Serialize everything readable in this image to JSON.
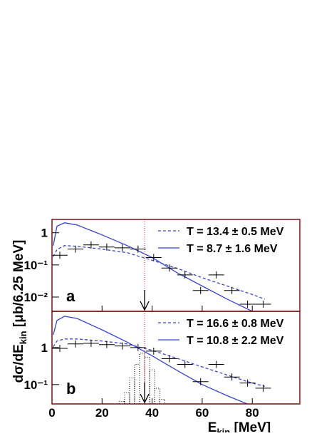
{
  "chart_data": [
    {
      "type": "line",
      "panel_label": "a",
      "xlim": [
        0,
        99
      ],
      "xticks": [
        0,
        20,
        40,
        60,
        80
      ],
      "ylim": [
        0.0036,
        2.6
      ],
      "log_y": true,
      "yticks": [
        {
          "value": 1,
          "label": "1"
        },
        {
          "value": 0.1,
          "label": "10⁻¹"
        },
        {
          "value": 0.01,
          "label": "10⁻²"
        }
      ],
      "marker_x": 37,
      "series": [
        {
          "name": "T = 13.4 ± 0.5 MeV",
          "color": "#3344dd",
          "dashed": true,
          "x": [
            0.5,
            2,
            5,
            10,
            20,
            30,
            40,
            50,
            60,
            70,
            80,
            85
          ],
          "values": [
            0.18,
            0.3,
            0.4,
            0.38,
            0.31,
            0.24,
            0.14,
            0.078,
            0.04,
            0.022,
            0.012,
            0.0086
          ]
        },
        {
          "name": "T =  8.7 ± 1.6 MeV",
          "color": "#3344dd",
          "dashed": false,
          "x": [
            0.5,
            2,
            5,
            10,
            20,
            30,
            40,
            50,
            60,
            70,
            80
          ],
          "values": [
            0.4,
            1.6,
            2.05,
            1.75,
            0.86,
            0.4,
            0.17,
            0.057,
            0.022,
            0.0086,
            0.0036
          ]
        }
      ],
      "points": {
        "xerr": 3.125,
        "x": [
          3.125,
          9.375,
          15.625,
          21.875,
          28.125,
          34.375,
          40.625,
          46.875,
          53.125,
          59.375,
          65.625,
          71.875,
          78.125,
          84.375
        ],
        "values": [
          0.2,
          0.31,
          0.42,
          0.36,
          0.34,
          0.31,
          0.17,
          0.08,
          0.049,
          0.016,
          0.049,
          0.016,
          0.006,
          0.006
        ]
      }
    },
    {
      "type": "line",
      "panel_label": "b",
      "xlim": [
        0,
        99
      ],
      "xticks": [
        0,
        20,
        40,
        60,
        80
      ],
      "ylim": [
        0.03,
        9.5
      ],
      "log_y": true,
      "yticks": [
        {
          "value": 1,
          "label": "1"
        },
        {
          "value": 0.1,
          "label": "10⁻¹"
        }
      ],
      "marker_x": 37,
      "xlabel": {
        "main": "E",
        "sub": "kin",
        "rest": " [MeV]"
      },
      "ylabel": {
        "main": "dσ/dE",
        "sub": "kin",
        "rest": "  [μb/6.25 MeV]"
      },
      "series": [
        {
          "name": "T = 16.6 ± 0.8 MeV",
          "color": "#3344dd",
          "dashed": true,
          "x": [
            0.5,
            2,
            5,
            10,
            20,
            30,
            40,
            50,
            60,
            70,
            80,
            85
          ],
          "values": [
            1.05,
            1.5,
            1.7,
            1.7,
            1.5,
            1.25,
            0.84,
            0.51,
            0.3,
            0.18,
            0.11,
            0.09
          ]
        },
        {
          "name": "T = 10.8 ± 2.2 MeV",
          "color": "#3344dd",
          "dashed": false,
          "x": [
            0.5,
            2,
            5,
            10,
            20,
            30,
            40,
            50,
            60,
            70,
            78
          ],
          "values": [
            2.2,
            5.4,
            7,
            6.1,
            3,
            1.4,
            0.6,
            0.24,
            0.1,
            0.05,
            0.03
          ]
        }
      ],
      "points": {
        "xerr": 3.125,
        "x": [
          3.125,
          9.375,
          15.625,
          21.875,
          28.125,
          34.375,
          40.625,
          46.875,
          53.125,
          59.375,
          65.625,
          71.875,
          78.125,
          84.375
        ],
        "values": [
          0.95,
          1.25,
          1.3,
          1.2,
          1.1,
          1.0,
          0.8,
          0.5,
          0.35,
          0.12,
          0.35,
          0.16,
          0.11,
          0.08
        ]
      },
      "histogram": {
        "bins": [
          27,
          29,
          31,
          33,
          35,
          37,
          39,
          41,
          43,
          45,
          47
        ],
        "values": [
          0.035,
          0.06,
          0.15,
          0.35,
          0.7,
          0.55,
          0.25,
          0.08,
          0.04,
          0.03
        ]
      }
    }
  ]
}
